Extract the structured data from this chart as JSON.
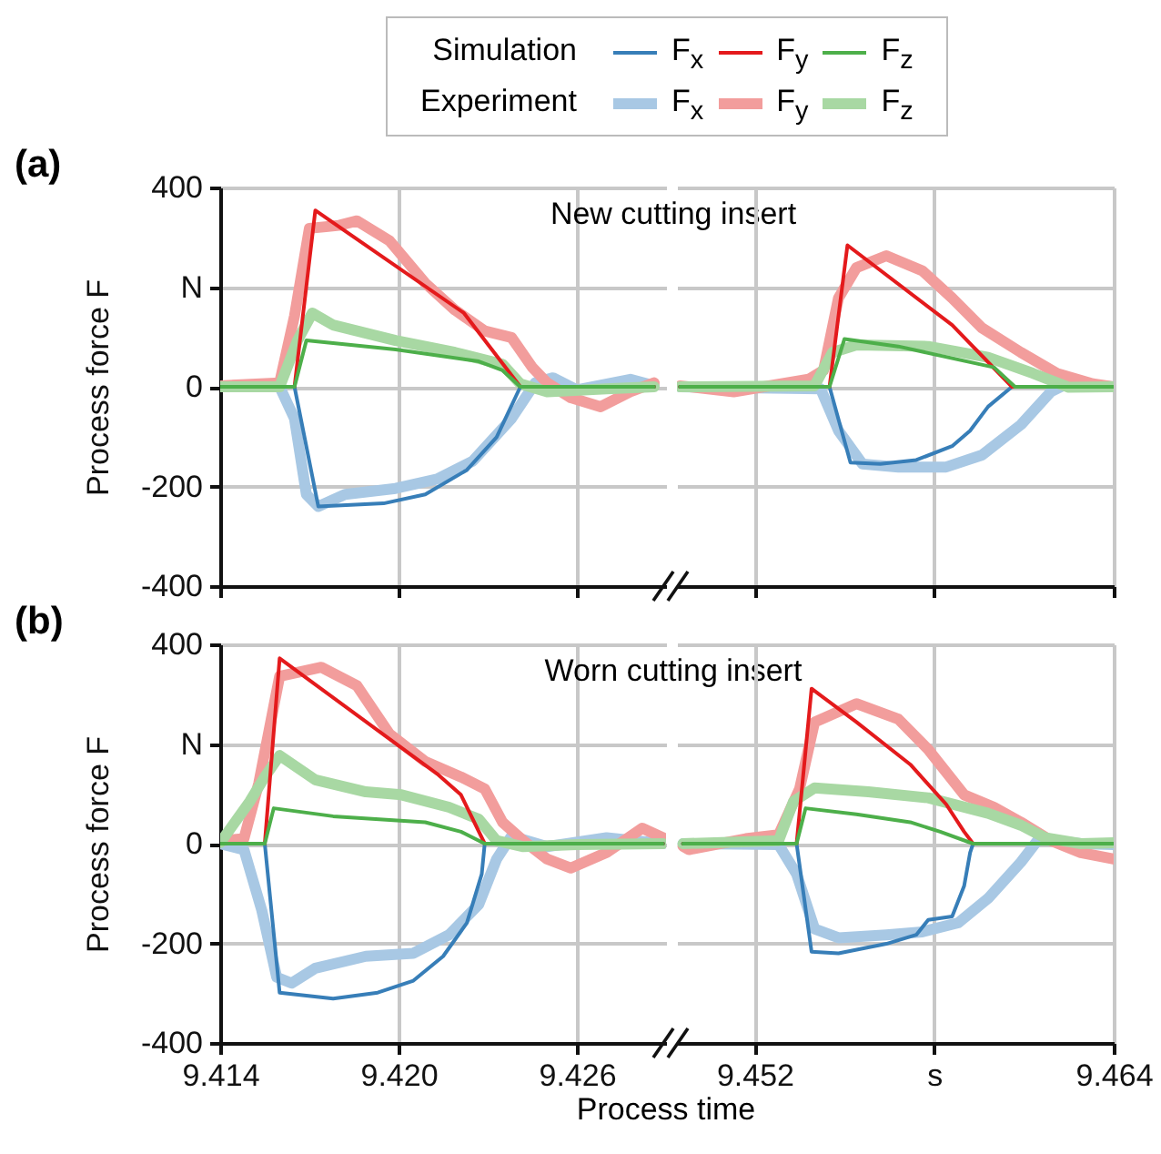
{
  "chart_data": [
    {
      "type": "line",
      "ylabel": "Process force F",
      "annotations": [
        "(a)",
        "New cutting insert",
        "Simulation",
        "Experiment"
      ],
      "xlim": [
        9.414,
        9.429
      ],
      "xticks": [
        9.414,
        9.42,
        9.426
      ],
      "ylim": [
        -400,
        400
      ],
      "yticks": [
        -400,
        -200,
        0,
        {
          "value": 200,
          "label": "N"
        },
        400
      ],
      "grid": true,
      "legend": "top",
      "tick_labels": "y",
      "series": [
        {
          "name": "F$_{x}$",
          "color": "#377eb8",
          "x": [
            9.414,
            9.4165,
            9.4173,
            9.4195,
            9.4209,
            9.4223,
            9.4233,
            9.4241,
            9.4286
          ],
          "values": [
            0,
            0,
            -240,
            -234,
            -216,
            -167,
            -101,
            0,
            0
          ]
        },
        {
          "name": "F$_{y}$",
          "color": "#e41a1c",
          "x": [
            9.414,
            9.4165,
            9.4172,
            9.4222,
            9.4241,
            9.4286
          ],
          "values": [
            0,
            0,
            354,
            148,
            0,
            0
          ]
        },
        {
          "name": "F$_{z}$",
          "color": "#4daf4a",
          "x": [
            9.414,
            9.4165,
            9.4169,
            9.4199,
            9.4227,
            9.4235,
            9.4241,
            9.4286
          ],
          "values": [
            0,
            0,
            93,
            75,
            51,
            33,
            0,
            0
          ]
        },
        {
          "name": "F$_{x}$",
          "color": "#a8c8e4",
          "x": [
            9.414,
            9.416,
            9.4165,
            9.4169,
            9.4173,
            9.4182,
            9.4199,
            9.4213,
            9.4225,
            9.4238,
            9.4246,
            9.4252,
            9.426,
            9.4278,
            9.4286
          ],
          "values": [
            0,
            0,
            -64,
            -216,
            -240,
            -216,
            -204,
            -185,
            -149,
            -64,
            8,
            18,
            -6,
            15,
            2
          ]
        },
        {
          "name": "F$_{y}$",
          "color": "#f29d9c",
          "x": [
            9.414,
            9.416,
            9.4165,
            9.417,
            9.418,
            9.4186,
            9.4197,
            9.4209,
            9.4219,
            9.4229,
            9.4238,
            9.4245,
            9.425,
            9.4258,
            9.4268,
            9.4278,
            9.4286
          ],
          "values": [
            2,
            8,
            142,
            318,
            324,
            333,
            293,
            208,
            154,
            112,
            99,
            39,
            8,
            -22,
            -40,
            -10,
            8
          ]
        },
        {
          "name": "F$_{z}$",
          "color": "#a8d8a3",
          "x": [
            9.414,
            9.416,
            9.4166,
            9.4171,
            9.4178,
            9.4199,
            9.4219,
            9.4235,
            9.4241,
            9.425,
            9.427,
            9.4286
          ],
          "values": [
            0,
            0,
            93,
            148,
            124,
            93,
            69,
            45,
            6,
            -10,
            -4,
            0
          ]
        }
      ]
    },
    {
      "type": "line",
      "xlim": [
        9.4494,
        9.464
      ],
      "xticks": [
        9.452,
        9.458,
        9.464
      ],
      "ylim": [
        -400,
        400
      ],
      "yticks": [
        -400,
        -200,
        0,
        200,
        400
      ],
      "grid": true,
      "tick_labels": false,
      "series": [
        {
          "color": "#377eb8",
          "x": [
            9.4495,
            9.4545,
            9.4552,
            9.4562,
            9.4574,
            9.4586,
            9.4592,
            9.4598,
            9.4606,
            9.464
          ],
          "values": [
            0,
            0,
            -152,
            -155,
            -147,
            -119,
            -88,
            -40,
            0,
            0
          ]
        },
        {
          "color": "#e41a1c",
          "x": [
            9.4495,
            9.4545,
            9.4551,
            9.4586,
            9.4606,
            9.464
          ],
          "values": [
            0,
            0,
            284,
            124,
            0,
            0
          ]
        },
        {
          "color": "#4daf4a",
          "x": [
            9.4495,
            9.4545,
            9.455,
            9.4568,
            9.46,
            9.4607,
            9.464
          ],
          "values": [
            0,
            0,
            96,
            81,
            39,
            0,
            0
          ]
        },
        {
          "color": "#a8c8e4",
          "x": [
            9.4495,
            9.4542,
            9.4548,
            9.4556,
            9.4568,
            9.4584,
            9.4596,
            9.4609,
            9.4619,
            9.4625,
            9.464
          ],
          "values": [
            0,
            -4,
            -88,
            -155,
            -161,
            -161,
            -137,
            -76,
            -10,
            8,
            0
          ]
        },
        {
          "color": "#f29d9c",
          "x": [
            9.4495,
            9.4513,
            9.4538,
            9.4543,
            9.4548,
            9.4554,
            9.4564,
            9.4576,
            9.4586,
            9.4596,
            9.4609,
            9.4621,
            9.4633,
            9.464
          ],
          "values": [
            2,
            -10,
            15,
            33,
            178,
            239,
            263,
            233,
            178,
            118,
            69,
            27,
            6,
            0
          ]
        },
        {
          "color": "#a8d8a3",
          "x": [
            9.4495,
            9.454,
            9.4546,
            9.4554,
            9.4578,
            9.4598,
            9.4613,
            9.4625,
            9.464
          ],
          "values": [
            0,
            2,
            69,
            84,
            81,
            59,
            27,
            -1,
            0
          ]
        }
      ]
    },
    {
      "type": "line",
      "ylabel": "Process force F",
      "xlabel": "Process time",
      "annotations": [
        "(b)",
        "Worn cutting insert"
      ],
      "xlim": [
        9.414,
        9.429
      ],
      "xticks": [
        9.414,
        {
          "value": 9.42,
          "label": "9.420"
        },
        9.426
      ],
      "ylim": [
        -400,
        400
      ],
      "yticks": [
        -400,
        -200,
        0,
        {
          "value": 200,
          "label": "N"
        },
        400
      ],
      "grid": true,
      "series": [
        {
          "color": "#377eb8",
          "x": [
            9.414,
            9.4155,
            9.416,
            9.4178,
            9.4193,
            9.4205,
            9.4215,
            9.4223,
            9.4228,
            9.4229,
            9.4289
          ],
          "values": [
            0,
            0,
            -299,
            -311,
            -299,
            -275,
            -226,
            -159,
            -61,
            0,
            0
          ]
        },
        {
          "color": "#e41a1c",
          "x": [
            9.414,
            9.4155,
            9.416,
            9.4199,
            9.4213,
            9.4221,
            9.4229,
            9.4289
          ],
          "values": [
            0,
            0,
            372,
            201,
            140,
            98,
            0,
            0
          ]
        },
        {
          "color": "#4daf4a",
          "x": [
            9.414,
            9.4155,
            9.4158,
            9.4178,
            9.4209,
            9.4221,
            9.4229,
            9.4289
          ],
          "values": [
            0,
            0,
            71,
            55,
            43,
            24,
            0,
            0
          ]
        },
        {
          "color": "#a8c8e4",
          "x": [
            9.414,
            9.4148,
            9.4154,
            9.4159,
            9.4164,
            9.4172,
            9.4189,
            9.4205,
            9.4217,
            9.4227,
            9.4233,
            9.4238,
            9.425,
            9.427,
            9.4289
          ],
          "values": [
            0,
            -12,
            -134,
            -268,
            -280,
            -250,
            -226,
            -220,
            -183,
            -122,
            -31,
            15,
            -6,
            12,
            0
          ]
        },
        {
          "color": "#f29d9c",
          "x": [
            9.414,
            9.4148,
            9.4153,
            9.416,
            9.4174,
            9.4186,
            9.4197,
            9.4209,
            9.4221,
            9.4229,
            9.4235,
            9.4242,
            9.425,
            9.4258,
            9.427,
            9.4282,
            9.4289
          ],
          "values": [
            6,
            10,
            122,
            336,
            354,
            317,
            220,
            165,
            134,
            110,
            43,
            6,
            -31,
            -49,
            -18,
            31,
            12
          ]
        },
        {
          "color": "#a8d8a3",
          "x": [
            9.414,
            9.415,
            9.4155,
            9.416,
            9.4172,
            9.4189,
            9.4201,
            9.4217,
            9.4227,
            9.4233,
            9.4242,
            9.426,
            9.4289
          ],
          "values": [
            2,
            85,
            134,
            177,
            128,
            104,
            98,
            73,
            49,
            6,
            -6,
            -2,
            0
          ]
        }
      ]
    },
    {
      "type": "line",
      "xlim": [
        9.4494,
        9.464
      ],
      "xticks": [
        9.452,
        {
          "value": 9.458,
          "label": "s"
        },
        9.464
      ],
      "ylim": [
        -400,
        400
      ],
      "yticks": [
        -400,
        -200,
        0,
        200,
        400
      ],
      "grid": true,
      "tick_labels": "x",
      "series": [
        {
          "color": "#377eb8",
          "x": [
            9.4496,
            9.4534,
            9.4539,
            9.4548,
            9.4564,
            9.4574,
            9.4578,
            9.4586,
            9.459,
            9.4592,
            9.4593,
            9.464
          ],
          "values": [
            0,
            0,
            -217,
            -220,
            -201,
            -183,
            -153,
            -146,
            -85,
            -18,
            0,
            0
          ]
        },
        {
          "color": "#e41a1c",
          "x": [
            9.4496,
            9.4534,
            9.4539,
            9.4554,
            9.4572,
            9.4584,
            9.459,
            9.4593,
            9.464
          ],
          "values": [
            0,
            0,
            311,
            244,
            159,
            79,
            24,
            0,
            0
          ]
        },
        {
          "color": "#4daf4a",
          "x": [
            9.4496,
            9.4534,
            9.4537,
            9.4554,
            9.4572,
            9.4582,
            9.4593,
            9.464
          ],
          "values": [
            0,
            0,
            71,
            59,
            43,
            24,
            0,
            0
          ]
        },
        {
          "color": "#a8c8e4",
          "x": [
            9.4496,
            9.4528,
            9.4534,
            9.454,
            9.4548,
            9.4564,
            9.4576,
            9.4588,
            9.4598,
            9.4609,
            9.4615,
            9.4629,
            9.464
          ],
          "values": [
            0,
            -2,
            -61,
            -171,
            -189,
            -183,
            -177,
            -159,
            -110,
            -37,
            10,
            0,
            -2
          ]
        },
        {
          "color": "#f29d9c",
          "x": [
            9.4496,
            9.4498,
            9.4517,
            9.4528,
            9.4535,
            9.454,
            9.4554,
            9.4568,
            9.4578,
            9.459,
            9.46,
            9.4609,
            9.4619,
            9.4629,
            9.464
          ],
          "values": [
            -5,
            -12,
            10,
            18,
            110,
            244,
            281,
            250,
            189,
            98,
            73,
            43,
            6,
            -18,
            -31
          ]
        },
        {
          "color": "#a8d8a3",
          "x": [
            9.4496,
            9.4528,
            9.4533,
            9.454,
            9.4558,
            9.4578,
            9.4598,
            9.4609,
            9.4617,
            9.4629,
            9.464
          ],
          "values": [
            0,
            6,
            85,
            112,
            104,
            92,
            61,
            37,
            12,
            0,
            2
          ]
        }
      ]
    }
  ]
}
